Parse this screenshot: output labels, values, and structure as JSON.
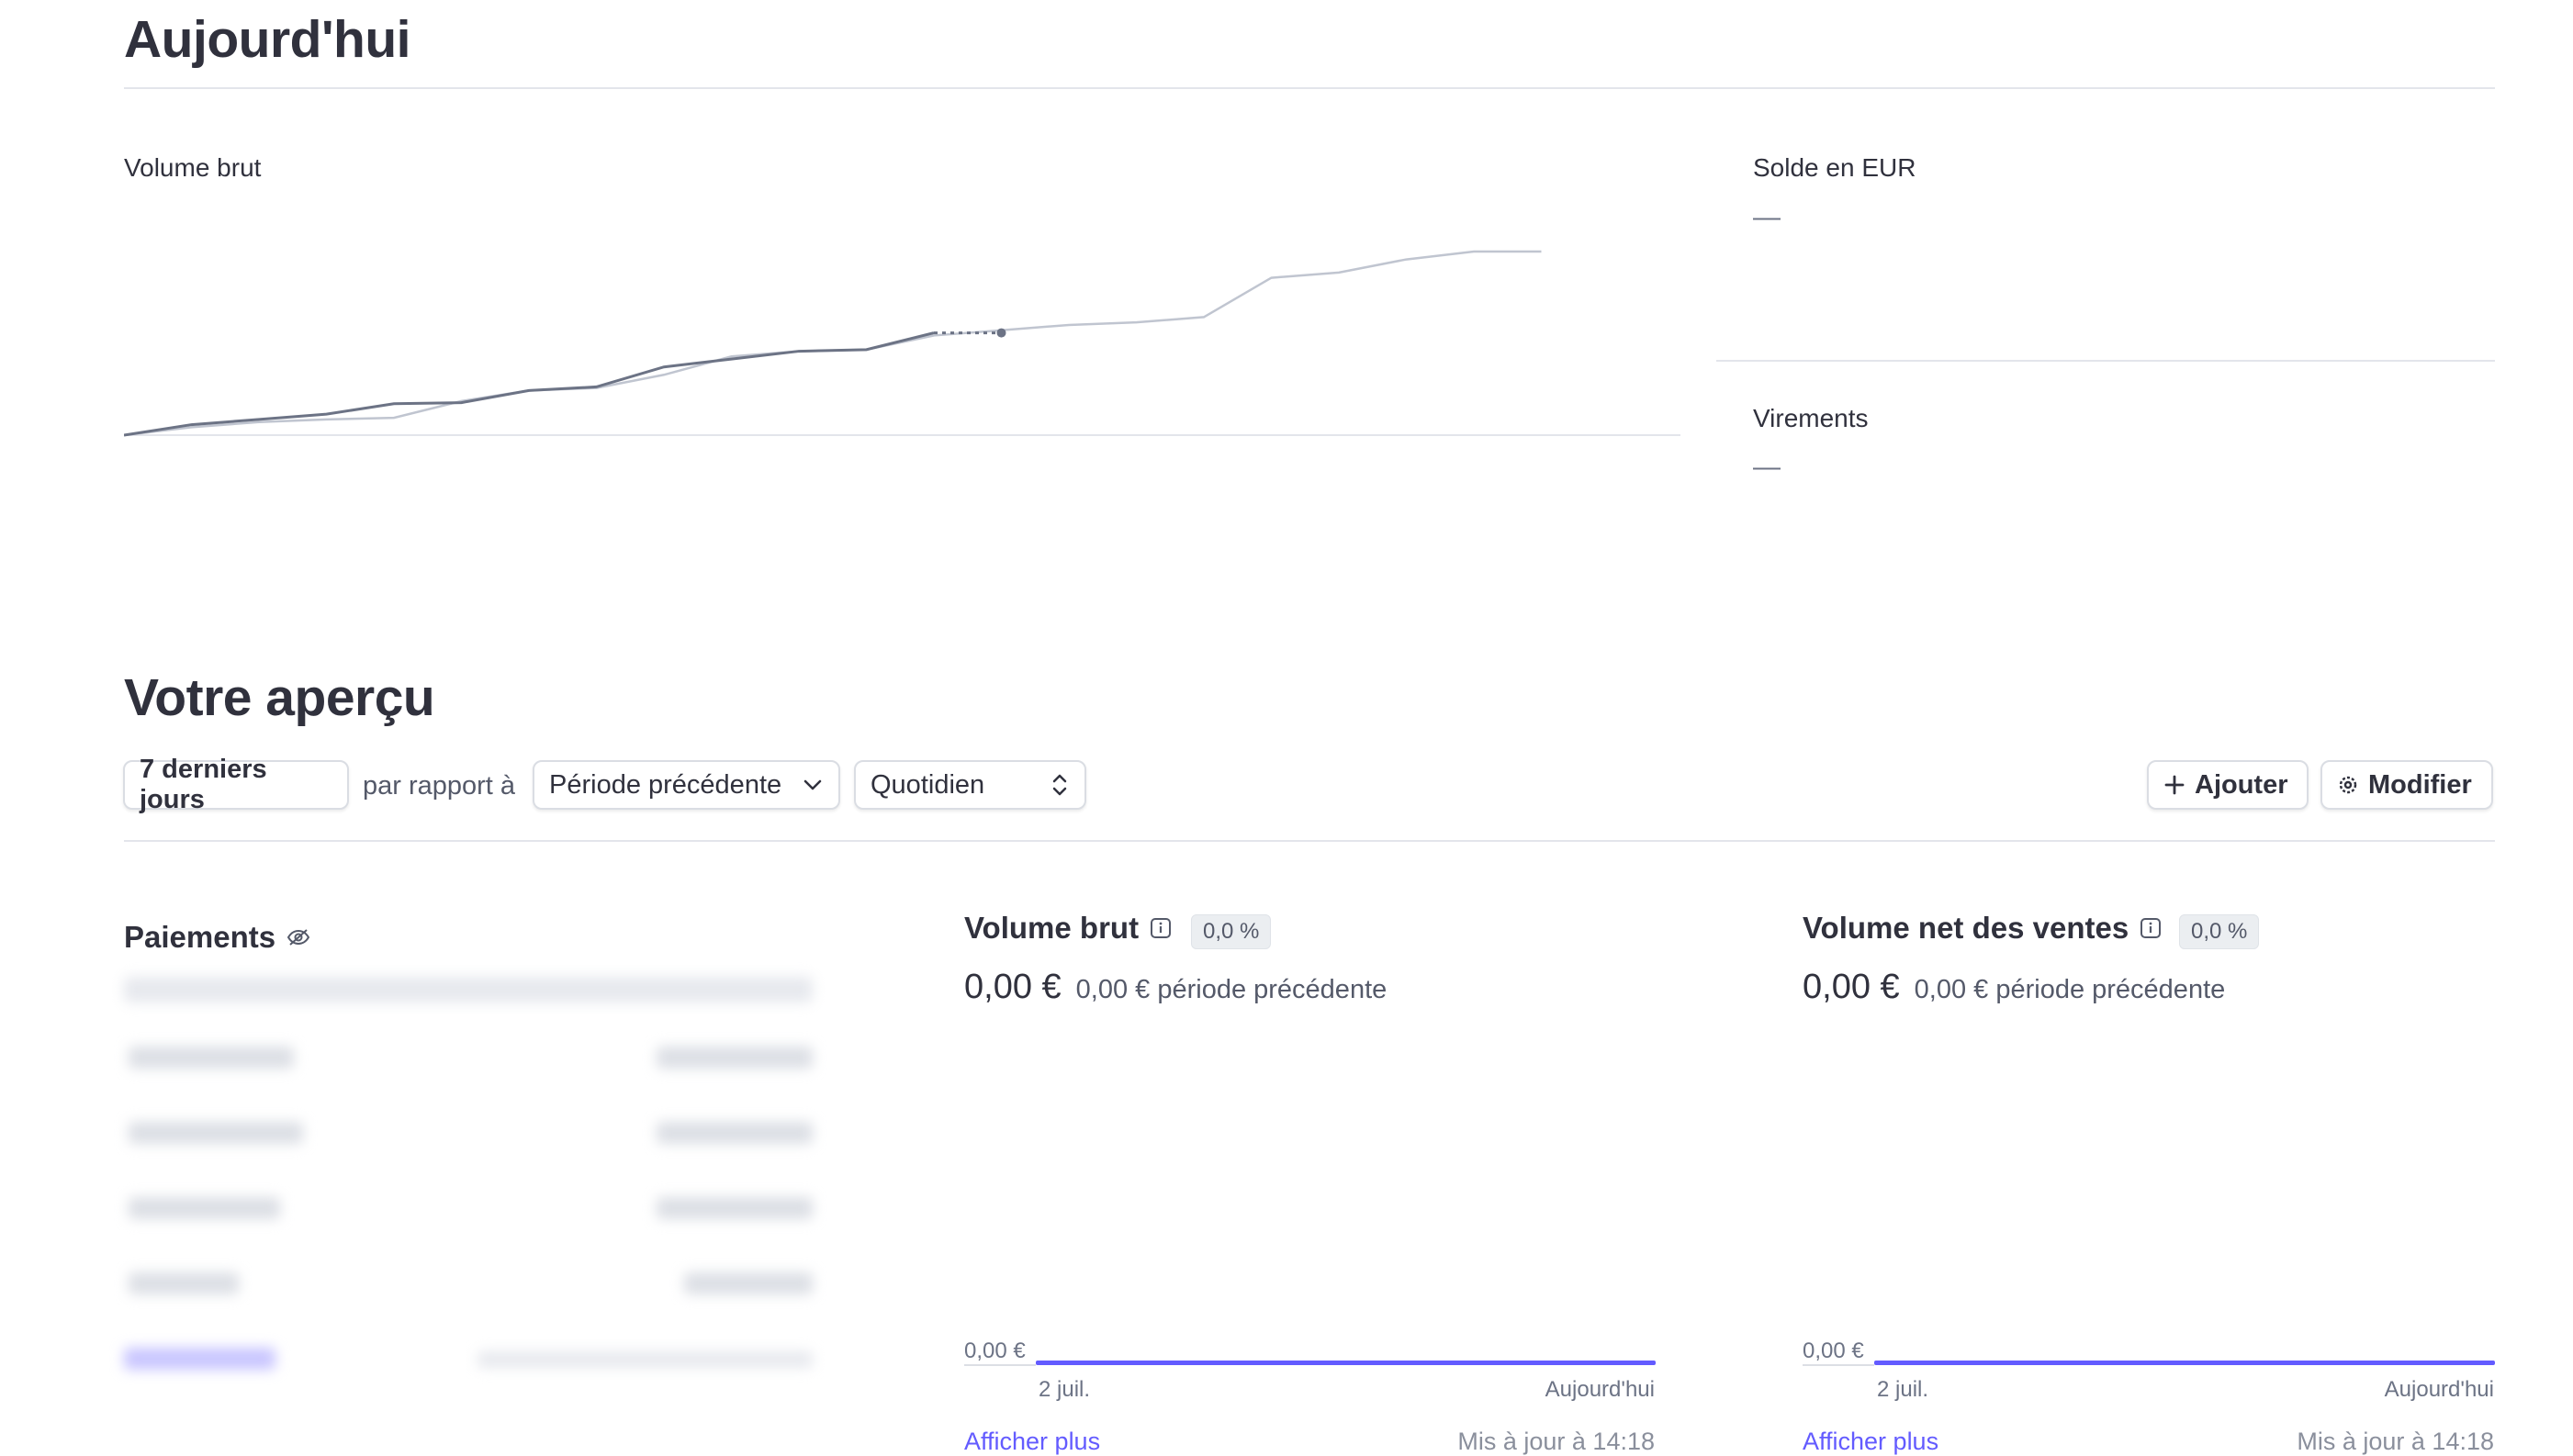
{
  "today": {
    "title": "Aujourd'hui",
    "gross_volume_label": "Volume brut",
    "balance_label": "Solde en EUR",
    "balance_value": "—",
    "payouts_label": "Virements",
    "payouts_value": "—"
  },
  "today_chart": {
    "type": "line",
    "series": [
      {
        "style": "current",
        "values": [
          0,
          2,
          3,
          4,
          6,
          6.2,
          8.5,
          9.2,
          13,
          14.5,
          16,
          16.3,
          19.5,
          19.5
        ]
      },
      {
        "style": "previous",
        "values": [
          0,
          1.5,
          2.5,
          3,
          3.3,
          6.5,
          8.5,
          9,
          11.5,
          15,
          16,
          16.3,
          19,
          20,
          21,
          21.5,
          22.5,
          30,
          31,
          33.5,
          35,
          35
        ]
      }
    ],
    "colors": {
      "current": "#6c7385",
      "previous": "#c0c5d0"
    }
  },
  "overview": {
    "title": "Votre aperçu",
    "range_button": "7 derniers jours",
    "compare_text": "par rapport à",
    "compare_select": "Période précédente",
    "interval_select": "Quotidien",
    "add_button": "Ajouter",
    "edit_button": "Modifier"
  },
  "payments": {
    "title": "Paiements"
  },
  "cards": [
    {
      "title": "Volume brut",
      "badge": "0,0 %",
      "value": "0,00 €",
      "previous": "0,00 € période précédente",
      "axis_value": "0,00 €",
      "x_start": "2 juil.",
      "x_end": "Aujourd'hui",
      "link": "Afficher plus",
      "updated": "Mis à jour à 14:18"
    },
    {
      "title": "Volume net des ventes",
      "badge": "0,0 %",
      "value": "0,00 €",
      "previous": "0,00 € période précédente",
      "axis_value": "0,00 €",
      "x_start": "2 juil.",
      "x_end": "Aujourd'hui",
      "link": "Afficher plus",
      "updated": "Mis à jour à 14:18"
    }
  ],
  "accent_color": "#635bff"
}
